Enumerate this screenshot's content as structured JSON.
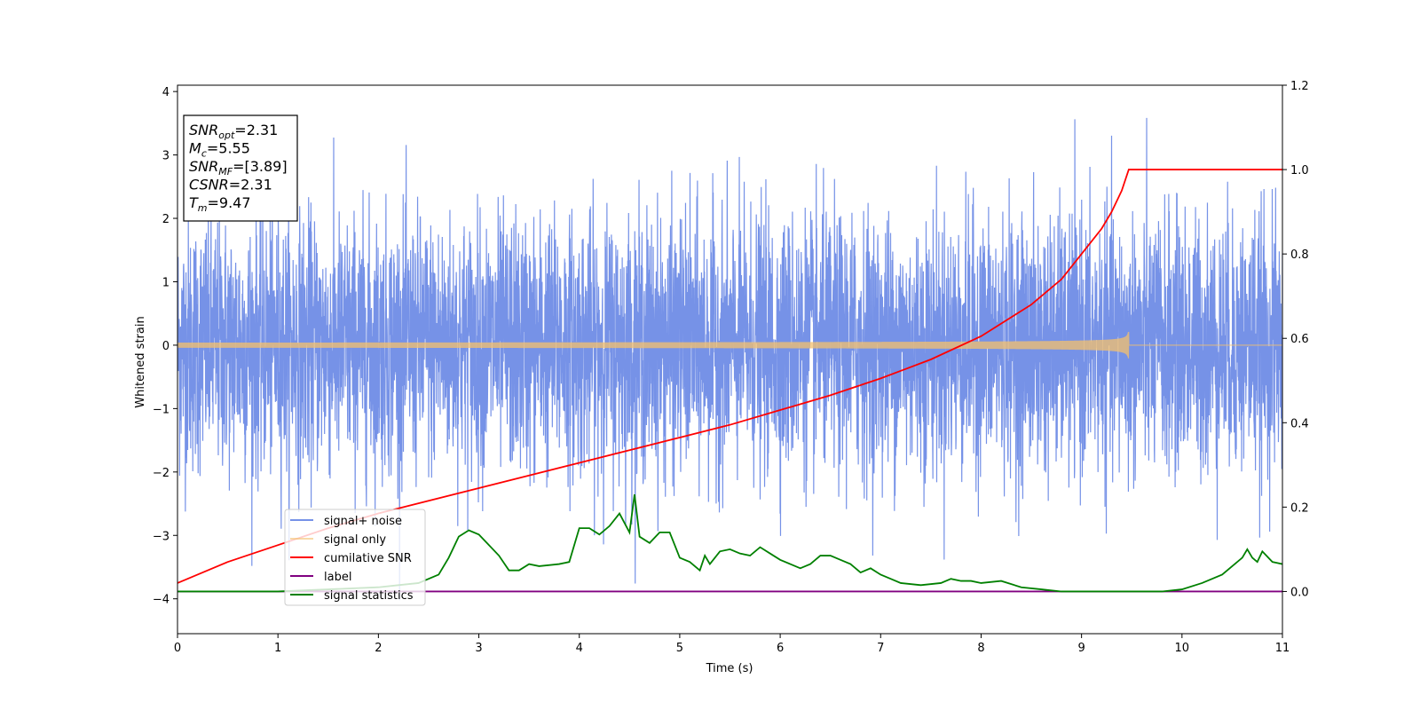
{
  "chart_data": {
    "type": "line",
    "xlabel": "Time (s)",
    "ylabel": "Whitened strain",
    "xlim": [
      0,
      11
    ],
    "ylim_left": [
      -4.55,
      4.1
    ],
    "ylim_right": [
      -0.1,
      1.2
    ],
    "x_ticks": [
      0,
      1,
      2,
      3,
      4,
      5,
      6,
      7,
      8,
      9,
      10,
      11
    ],
    "y_left_ticks": [
      -4,
      -3,
      -2,
      -1,
      0,
      1,
      2,
      3,
      4
    ],
    "y_right_ticks": [
      0.0,
      0.2,
      0.4,
      0.6,
      0.8,
      1.0,
      1.2
    ],
    "y_right_tick_labels": [
      "0.0",
      "0.2",
      "0.4",
      "0.6",
      "0.8",
      "1.0",
      "1.2"
    ],
    "grid": false,
    "legend_placement": "lower-left",
    "info_box": {
      "lines": [
        {
          "base": "SNR",
          "sub": "opt",
          "value": "=2.31"
        },
        {
          "base": "M",
          "sub": "c",
          "value": "=5.55"
        },
        {
          "base": "SNR",
          "sub": "MF",
          "value": "=[3.89]"
        },
        {
          "base": "CSNR",
          "sub": "",
          "value": "=2.31"
        },
        {
          "base": "T",
          "sub": "m",
          "value": "=9.47"
        }
      ]
    },
    "series": [
      {
        "name": "signal+ noise",
        "color": "#6f8ce6",
        "axis": "left",
        "kind": "noise",
        "amplitude_range": [
          -4.15,
          3.7
        ]
      },
      {
        "name": "signal only",
        "color": "#f5c06c",
        "axis": "left",
        "kind": "chirp",
        "merger_time": 9.47,
        "peak_amplitude": 0.22
      },
      {
        "name": "cumilative SNR",
        "color": "#ff0000",
        "axis": "right",
        "x": [
          0,
          0.5,
          1,
          1.5,
          2,
          2.5,
          3,
          3.5,
          4,
          4.5,
          5,
          5.5,
          6,
          6.5,
          7,
          7.5,
          8,
          8.5,
          8.8,
          9.0,
          9.2,
          9.3,
          9.4,
          9.47,
          11
        ],
        "y": [
          0.02,
          0.07,
          0.11,
          0.15,
          0.185,
          0.215,
          0.245,
          0.275,
          0.305,
          0.335,
          0.365,
          0.395,
          0.43,
          0.465,
          0.505,
          0.55,
          0.605,
          0.68,
          0.74,
          0.8,
          0.86,
          0.9,
          0.95,
          1.0,
          1.0
        ]
      },
      {
        "name": "label",
        "color": "#800080",
        "axis": "right",
        "x": [
          0,
          11
        ],
        "y": [
          0.0,
          0.0
        ]
      },
      {
        "name": "signal statistics",
        "color": "#008000",
        "axis": "right",
        "x": [
          0,
          1,
          2,
          2.2,
          2.4,
          2.6,
          2.7,
          2.8,
          2.9,
          3.0,
          3.1,
          3.2,
          3.3,
          3.4,
          3.5,
          3.6,
          3.8,
          3.9,
          4.0,
          4.1,
          4.2,
          4.3,
          4.4,
          4.5,
          4.55,
          4.6,
          4.7,
          4.8,
          4.9,
          5.0,
          5.1,
          5.2,
          5.25,
          5.3,
          5.4,
          5.5,
          5.6,
          5.7,
          5.8,
          5.9,
          6.0,
          6.1,
          6.2,
          6.3,
          6.4,
          6.5,
          6.6,
          6.7,
          6.8,
          6.9,
          7.0,
          7.1,
          7.2,
          7.4,
          7.6,
          7.7,
          7.8,
          7.9,
          8.0,
          8.2,
          8.4,
          8.6,
          8.8,
          9.0,
          9.5,
          9.8,
          10.0,
          10.2,
          10.4,
          10.5,
          10.6,
          10.65,
          10.7,
          10.75,
          10.8,
          10.9,
          11.0
        ],
        "y": [
          0.0,
          0.0,
          0.01,
          0.015,
          0.02,
          0.04,
          0.08,
          0.13,
          0.145,
          0.135,
          0.11,
          0.085,
          0.05,
          0.05,
          0.065,
          0.06,
          0.065,
          0.07,
          0.15,
          0.15,
          0.135,
          0.155,
          0.185,
          0.14,
          0.23,
          0.13,
          0.115,
          0.14,
          0.14,
          0.08,
          0.07,
          0.05,
          0.085,
          0.065,
          0.095,
          0.1,
          0.09,
          0.085,
          0.105,
          0.09,
          0.075,
          0.065,
          0.055,
          0.065,
          0.085,
          0.085,
          0.075,
          0.065,
          0.045,
          0.055,
          0.04,
          0.03,
          0.02,
          0.015,
          0.02,
          0.03,
          0.025,
          0.025,
          0.02,
          0.025,
          0.01,
          0.005,
          0.0,
          0.0,
          0.0,
          0.0,
          0.005,
          0.02,
          0.04,
          0.06,
          0.08,
          0.1,
          0.08,
          0.07,
          0.095,
          0.07,
          0.065
        ]
      }
    ]
  }
}
